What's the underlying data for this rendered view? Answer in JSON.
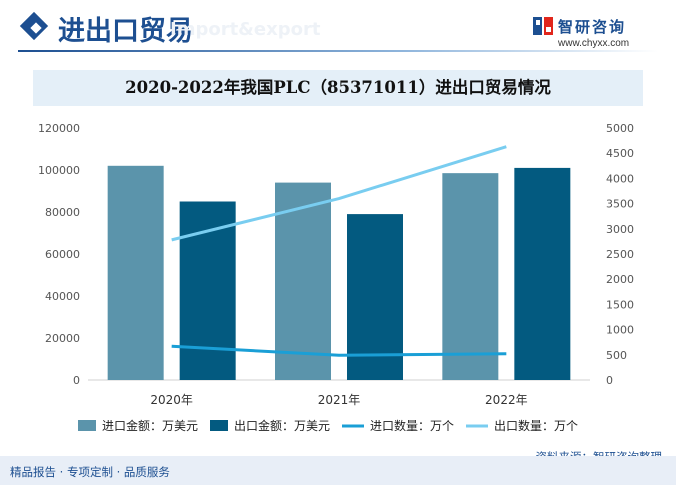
{
  "header": {
    "title": "进出口贸易",
    "watermark": "Import&export",
    "brand_name": "智研咨询",
    "brand_url": "www.chyxx.com"
  },
  "colors": {
    "import_amount": "#5b94ab",
    "export_amount": "#035a80",
    "import_qty": "#1a9fd6",
    "export_qty": "#79cdf0",
    "title_band": "#e4eff8",
    "brand": "#1d4f91"
  },
  "chart_data": {
    "type": "bar",
    "title": "2020-2022年我国PLC（85371011）进出口贸易情况",
    "categories": [
      "2020年",
      "2021年",
      "2022年"
    ],
    "series": [
      {
        "name": "进口金额：万美元",
        "kind": "bar",
        "axis": "left",
        "values": [
          102000,
          94000,
          98500
        ]
      },
      {
        "name": "出口金额：万美元",
        "kind": "bar",
        "axis": "left",
        "values": [
          85000,
          79000,
          101000
        ]
      },
      {
        "name": "进口数量：万个",
        "kind": "line",
        "axis": "right",
        "values": [
          670,
          490,
          520
        ]
      },
      {
        "name": "出口数量：万个",
        "kind": "line",
        "axis": "right",
        "values": [
          2780,
          3600,
          4630
        ]
      }
    ],
    "ylim_left": [
      0,
      120000
    ],
    "yticks_left": [
      "0",
      "20000",
      "40000",
      "60000",
      "80000",
      "100000",
      "120000"
    ],
    "ylim_right": [
      0,
      5000
    ],
    "yticks_right": [
      "0",
      "500",
      "1000",
      "1500",
      "2000",
      "2500",
      "3000",
      "3500",
      "4000",
      "4500",
      "5000"
    ],
    "grid": false,
    "legend_position": "bottom"
  },
  "footer": {
    "tagline": "精品报告 · 专项定制 · 品质服务",
    "source": "资料来源：智研咨询整理"
  }
}
